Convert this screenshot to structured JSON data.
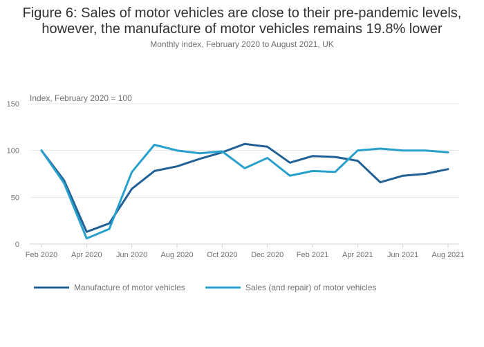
{
  "title_line1": "Figure 6: Sales of motor vehicles are close to their pre-pandemic levels,",
  "title_line2": "however, the manufacture of motor vehicles remains 19.8% lower",
  "subtitle": "Monthly index, February 2020 to August 2021, UK",
  "chart_data": {
    "type": "line",
    "ylabel": "Index, February 2020 = 100",
    "ylim": [
      0,
      150
    ],
    "yticks": [
      0,
      50,
      100,
      150
    ],
    "grid": true,
    "legend_position": "bottom",
    "x": [
      "Feb 2020",
      "Mar 2020",
      "Apr 2020",
      "May 2020",
      "Jun 2020",
      "Jul 2020",
      "Aug 2020",
      "Sep 2020",
      "Oct 2020",
      "Nov 2020",
      "Dec 2020",
      "Jan 2021",
      "Feb 2021",
      "Mar 2021",
      "Apr 2021",
      "May 2021",
      "Jun 2021",
      "Jul 2021",
      "Aug 2021"
    ],
    "xtick_labels": [
      "Feb 2020",
      "Apr 2020",
      "Jun 2020",
      "Aug 2020",
      "Oct 2020",
      "Dec 2020",
      "Feb 2021",
      "Apr 2021",
      "Jun 2021",
      "Aug 2021"
    ],
    "series": [
      {
        "name": "Manufacture of motor vehicles",
        "color": "#206095",
        "values": [
          100,
          68,
          13,
          22,
          59,
          78,
          83,
          91,
          98,
          107,
          104,
          87,
          94,
          93,
          89,
          66,
          73,
          75,
          80
        ]
      },
      {
        "name": "Sales (and repair) of motor vehicles",
        "color": "#27a0cc",
        "values": [
          100,
          65,
          6,
          16,
          77,
          106,
          100,
          97,
          99,
          81,
          92,
          73,
          78,
          77,
          100,
          102,
          100,
          100,
          98
        ]
      }
    ]
  }
}
